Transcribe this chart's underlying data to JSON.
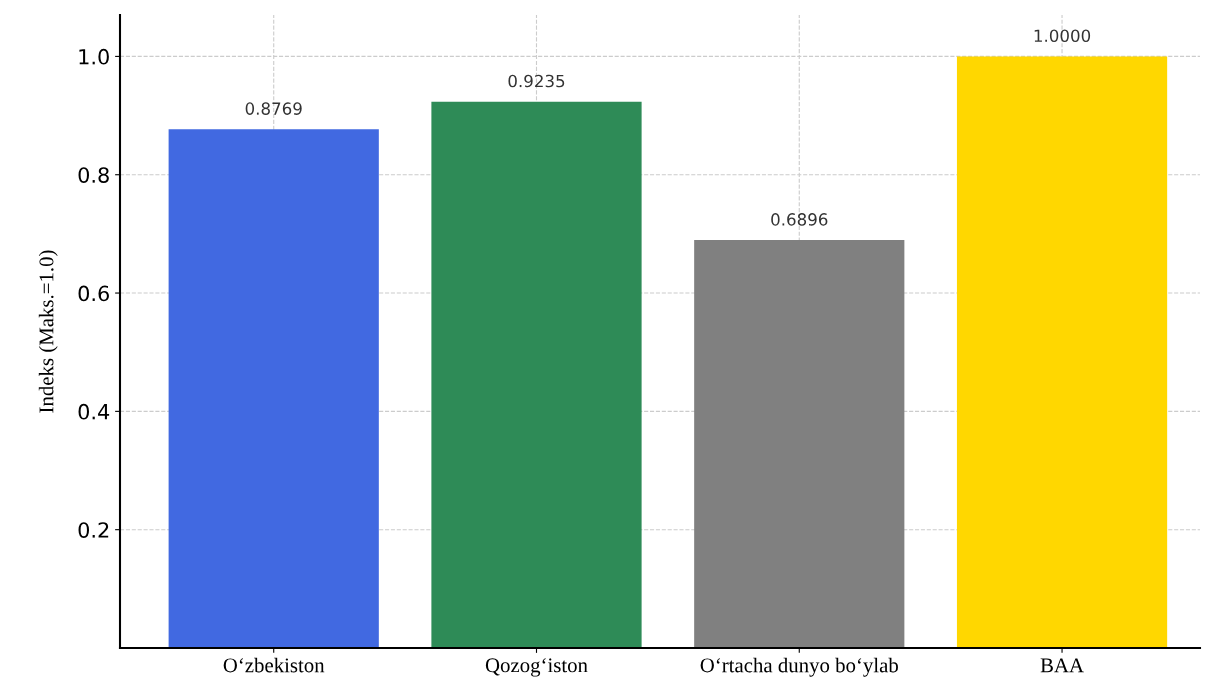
{
  "chart_data": {
    "type": "bar",
    "categories": [
      "O‘zbekiston",
      "Qozog‘iston",
      "O‘rtacha dunyo bo‘ylab",
      "BAA"
    ],
    "values": [
      0.8769,
      0.9235,
      0.6896,
      1.0
    ],
    "colors": [
      "#4169e1",
      "#2e8b57",
      "#808080",
      "#ffd700"
    ],
    "value_labels": [
      "0.8769",
      "0.9235",
      "0.6896",
      "1.0000"
    ],
    "ylabel": "Indeks (Maks.=1.0)",
    "ylim": [
      0,
      1.07
    ],
    "yticks": [
      0.2,
      0.4,
      0.6,
      0.8,
      {
        "value": 1.0,
        "label": "1.0"
      }
    ],
    "grid": true
  }
}
